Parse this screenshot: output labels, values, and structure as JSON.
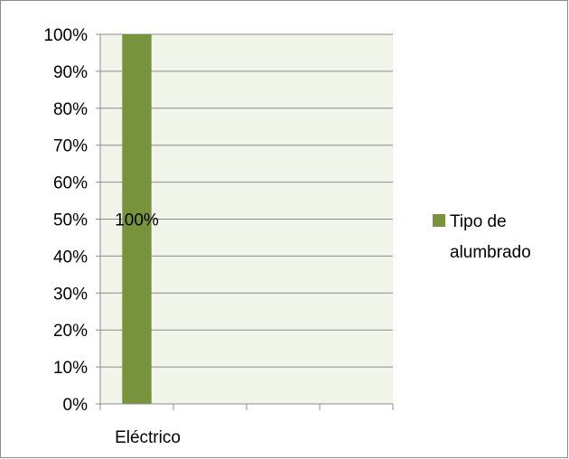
{
  "chart_data": {
    "type": "bar",
    "categories": [
      "Eléctrico",
      "",
      "",
      ""
    ],
    "series": [
      {
        "name": "Tipo de alumbrado",
        "values": [
          100,
          null,
          null,
          null
        ],
        "data_labels": [
          "100%",
          "",
          "",
          ""
        ],
        "color": "#77933c"
      }
    ],
    "y_ticks": [
      "0%",
      "10%",
      "20%",
      "30%",
      "40%",
      "50%",
      "60%",
      "70%",
      "80%",
      "90%",
      "100%"
    ],
    "ylim": [
      0,
      100
    ],
    "grid": true,
    "plot_background": "#f1f5e9",
    "legend": {
      "position": "right",
      "lines": [
        "Tipo de",
        "alumbrado"
      ]
    }
  }
}
